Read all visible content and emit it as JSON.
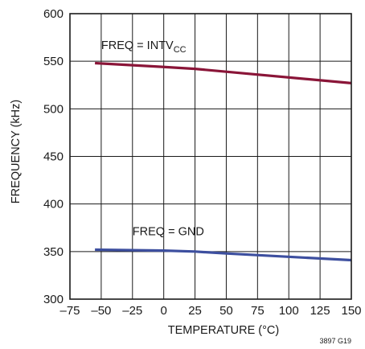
{
  "chart_data": {
    "type": "line",
    "xlabel": "TEMPERATURE (°C)",
    "ylabel": "FREQUENCY (kHz)",
    "xlim": [
      -75,
      150
    ],
    "ylim": [
      300,
      600
    ],
    "x_ticks": [
      -75,
      -50,
      -25,
      0,
      25,
      50,
      75,
      100,
      125,
      150
    ],
    "y_ticks": [
      300,
      350,
      400,
      450,
      500,
      550,
      600
    ],
    "x_tick_labels": [
      "–75",
      "–50",
      "–25",
      "0",
      "25",
      "50",
      "75",
      "100",
      "125",
      "150"
    ],
    "y_tick_labels": [
      "300",
      "350",
      "400",
      "450",
      "500",
      "550",
      "600"
    ],
    "grid": true,
    "series": [
      {
        "color": "#8a1538",
        "x": [
          -55,
          0,
          25,
          150
        ],
        "y": [
          548,
          544,
          542,
          527
        ]
      },
      {
        "color": "#3d4f9f",
        "x": [
          -55,
          0,
          25,
          50,
          150
        ],
        "y": [
          352,
          351,
          350,
          348,
          341
        ]
      }
    ],
    "annotations": [
      {
        "text_main": "FREQ = INTV",
        "text_sub": "CC",
        "x": -50,
        "y": 563
      },
      {
        "text_main": "FREQ = GND",
        "text_sub": "",
        "x": -25,
        "y": 367
      }
    ],
    "footnote": "3897 G19"
  }
}
